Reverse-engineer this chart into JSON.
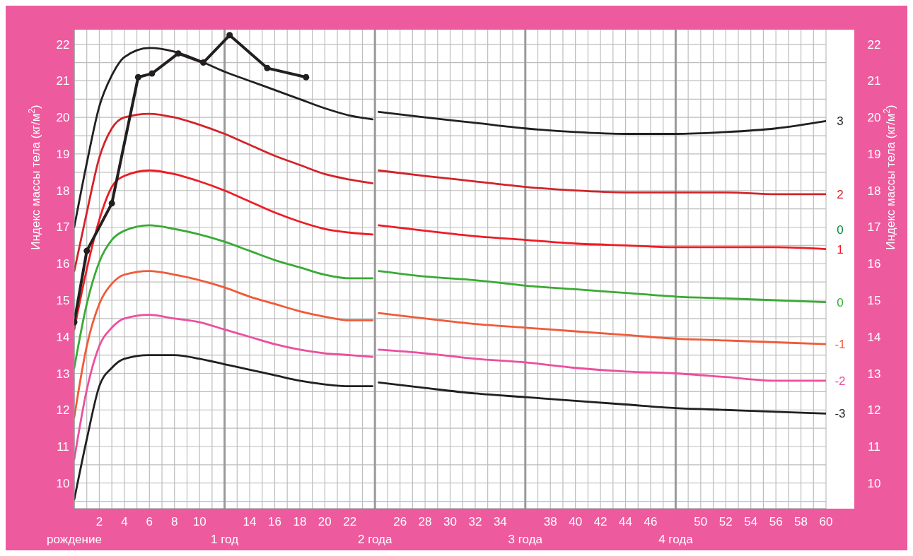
{
  "chart_data": {
    "type": "line",
    "ylabel": "Индекс массы тела (кг/м$^{2}$)",
    "y2label": "Индекс массы тела (кг/м$^{2}$)",
    "xlim": [
      0,
      60
    ],
    "xticks": [
      {
        "value": 0,
        "label": null
      },
      {
        "value": 1,
        "label": null
      },
      2,
      {
        "value": 3,
        "label": null
      },
      4,
      {
        "value": 5,
        "label": null
      },
      6,
      {
        "value": 7,
        "label": null
      },
      8,
      {
        "value": 9,
        "label": null
      },
      10,
      {
        "value": 11,
        "label": null
      },
      {
        "value": 13,
        "label": null
      },
      14,
      {
        "value": 15,
        "label": null
      },
      16,
      {
        "value": 17,
        "label": null
      },
      18,
      {
        "value": 19,
        "label": null
      },
      20,
      {
        "value": 21,
        "label": null
      },
      22,
      {
        "value": 23,
        "label": null
      },
      {
        "value": 25,
        "label": null
      },
      26,
      {
        "value": 27,
        "label": null
      },
      28,
      {
        "value": 29,
        "label": null
      },
      30,
      {
        "value": 31,
        "label": null
      },
      32,
      {
        "value": 33,
        "label": null
      },
      34,
      {
        "value": 35,
        "label": null
      },
      {
        "value": 37,
        "label": null
      },
      38,
      {
        "value": 39,
        "label": null
      },
      40,
      {
        "value": 41,
        "label": null
      },
      42,
      {
        "value": 43,
        "label": null
      },
      44,
      {
        "value": 45,
        "label": null
      },
      46,
      {
        "value": 47,
        "label": null
      },
      {
        "value": 49,
        "label": null
      },
      50,
      {
        "value": 51,
        "label": null
      },
      52,
      {
        "value": 53,
        "label": null
      },
      54,
      {
        "value": 55,
        "label": null
      },
      56,
      {
        "value": 57,
        "label": null
      },
      58,
      {
        "value": 59,
        "label": null
      },
      60
    ],
    "ylim": [
      9.3,
      22.4
    ],
    "yticks": [
      {
        "value": 9.5,
        "label": null
      },
      10,
      {
        "value": 10.5,
        "label": null
      },
      11,
      {
        "value": 11.5,
        "label": null
      },
      12,
      {
        "value": 12.5,
        "label": null
      },
      13,
      {
        "value": 13.5,
        "label": null
      },
      14,
      {
        "value": 14.5,
        "label": null
      },
      15,
      {
        "value": 15.5,
        "label": null
      },
      16,
      {
        "value": 16.5,
        "label": null
      },
      17,
      {
        "value": 17.5,
        "label": null
      },
      18,
      {
        "value": 18.5,
        "label": null
      },
      19,
      {
        "value": 19.5,
        "label": null
      },
      20,
      {
        "value": 20.5,
        "label": null
      },
      21,
      {
        "value": 21.5,
        "label": null
      },
      22
    ],
    "y2lim": [
      9.3,
      22.4
    ],
    "y2ticks": [
      10,
      11,
      12,
      13,
      14,
      15,
      16,
      17,
      18,
      19,
      20,
      21,
      22
    ],
    "grid": true,
    "line_style": "solid",
    "marker": "none",
    "x": [
      0,
      1,
      2,
      3,
      4,
      6,
      8,
      10,
      12,
      14,
      16,
      18,
      20,
      22,
      23.8,
      24,
      24.3,
      28,
      32,
      36,
      40,
      44,
      48,
      52,
      56,
      60
    ],
    "series": [
      {
        "name": "3",
        "color": "#231f20",
        "values": [
          17.0,
          18.75,
          20.3,
          21.15,
          21.65,
          21.9,
          21.8,
          21.55,
          21.25,
          21.0,
          20.75,
          20.5,
          20.25,
          20.05,
          19.95,
          null,
          20.15,
          20.0,
          19.85,
          19.7,
          19.6,
          19.55,
          19.55,
          19.6,
          19.7,
          19.9
        ]
      },
      {
        "name": "2",
        "color": "#d2232a",
        "values": [
          15.8,
          17.4,
          18.9,
          19.7,
          20.0,
          20.1,
          20.0,
          19.8,
          19.55,
          19.25,
          18.95,
          18.7,
          18.45,
          18.3,
          18.2,
          null,
          18.55,
          18.4,
          18.25,
          18.1,
          18.0,
          17.95,
          17.95,
          17.95,
          17.9,
          17.9
        ]
      },
      {
        "name": "1",
        "color": "#ed1c24",
        "values": [
          14.2,
          15.85,
          17.2,
          18.1,
          18.4,
          18.55,
          18.45,
          18.25,
          18.0,
          17.7,
          17.4,
          17.15,
          16.95,
          16.85,
          16.8,
          null,
          17.05,
          16.9,
          16.75,
          16.65,
          16.55,
          16.5,
          16.45,
          16.45,
          16.45,
          16.4
        ]
      },
      {
        "name": "0",
        "color": "#3aaa35",
        "values": [
          13.15,
          14.9,
          16.05,
          16.65,
          16.9,
          17.05,
          16.95,
          16.8,
          16.6,
          16.35,
          16.1,
          15.9,
          15.7,
          15.6,
          15.6,
          null,
          15.8,
          15.65,
          15.55,
          15.4,
          15.3,
          15.2,
          15.1,
          15.05,
          15.0,
          14.95
        ]
      },
      {
        "name": "-1",
        "color": "#f05a3a",
        "values": [
          11.8,
          13.75,
          14.9,
          15.45,
          15.7,
          15.8,
          15.7,
          15.55,
          15.35,
          15.1,
          14.9,
          14.7,
          14.55,
          14.45,
          14.45,
          null,
          14.65,
          14.5,
          14.35,
          14.25,
          14.15,
          14.05,
          13.95,
          13.9,
          13.85,
          13.8
        ]
      },
      {
        "name": "-2",
        "color": "#ec4f9f",
        "values": [
          10.65,
          12.55,
          13.75,
          14.25,
          14.5,
          14.6,
          14.5,
          14.4,
          14.2,
          14.0,
          13.8,
          13.65,
          13.55,
          13.5,
          13.45,
          null,
          13.65,
          13.55,
          13.4,
          13.3,
          13.15,
          13.05,
          13.0,
          12.9,
          12.8,
          12.8
        ]
      },
      {
        "name": "-3",
        "color": "#231f20",
        "values": [
          9.55,
          11.2,
          12.65,
          13.15,
          13.4,
          13.5,
          13.5,
          13.4,
          13.25,
          13.1,
          12.95,
          12.8,
          12.7,
          12.65,
          12.65,
          null,
          12.75,
          12.6,
          12.45,
          12.35,
          12.25,
          12.15,
          12.05,
          12.0,
          11.95,
          11.9
        ]
      },
      {
        "color": "#231f20",
        "marker": "circle",
        "x": [
          0,
          1,
          3,
          5.1,
          6.2,
          8.3,
          10.3,
          12.4,
          15.4,
          18.5
        ],
        "values": [
          14.4,
          16.35,
          17.65,
          21.1,
          21.2,
          21.75,
          21.5,
          22.25,
          21.35,
          21.1
        ]
      }
    ],
    "ref_lines": [
      {
        "axis": "x",
        "value": 12,
        "color": "#9a9a9a"
      },
      {
        "axis": "x",
        "value": 24,
        "color": "#9a9a9a"
      },
      {
        "axis": "x",
        "value": 36,
        "color": "#9a9a9a"
      },
      {
        "axis": "x",
        "value": 48,
        "color": "#9a9a9a"
      }
    ],
    "annotations": [
      "0",
      "рождение",
      "1 год",
      "2 года",
      "3 года",
      "4 года"
    ]
  }
}
